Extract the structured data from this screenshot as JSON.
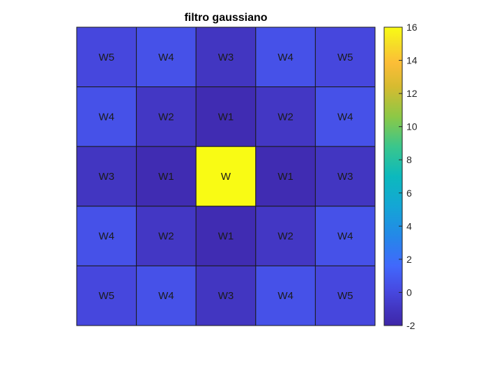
{
  "chart_data": {
    "type": "heatmap",
    "title": "filtro gaussiano",
    "rows": [
      {
        "values": [
          0,
          0.5,
          -1,
          0.5,
          0
        ],
        "labels": [
          "W5",
          "W4",
          "W3",
          "W4",
          "W5"
        ]
      },
      {
        "values": [
          0.5,
          -0.9,
          -1.6,
          -0.9,
          0.5
        ],
        "labels": [
          "W4",
          "W2",
          "W1",
          "W2",
          "W4"
        ]
      },
      {
        "values": [
          -1,
          -1.6,
          16,
          -1.6,
          -1
        ],
        "labels": [
          "W3",
          "W1",
          "W",
          "W1",
          "W3"
        ]
      },
      {
        "values": [
          0.5,
          -0.9,
          -1.6,
          -0.9,
          0.5
        ],
        "labels": [
          "W4",
          "W2",
          "W1",
          "W2",
          "W4"
        ]
      },
      {
        "values": [
          0,
          0.5,
          -1,
          0.5,
          0
        ],
        "labels": [
          "W5",
          "W4",
          "W3",
          "W4",
          "W5"
        ]
      }
    ],
    "colorbar": {
      "min": -2,
      "max": 16,
      "ticks": [
        -2,
        0,
        2,
        4,
        6,
        8,
        10,
        12,
        14,
        16
      ],
      "colormap": "parula"
    },
    "grid": true,
    "axes_ticks_visible": false
  }
}
